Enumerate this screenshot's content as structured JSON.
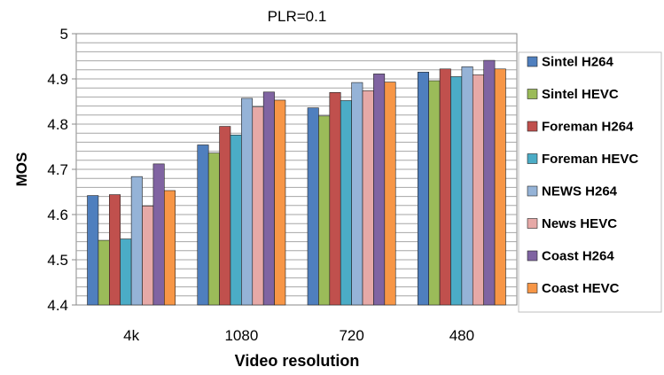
{
  "chart_data": {
    "type": "bar",
    "title": "PLR=0.1",
    "xlabel": "Video resolution",
    "ylabel": "MOS",
    "ylim": [
      4.4,
      5.0
    ],
    "yticks": [
      "4.4",
      "4.5",
      "4.6",
      "4.7",
      "4.8",
      "4.9",
      "5"
    ],
    "grid": true,
    "legend_position": "right",
    "categories": [
      "4k",
      "1080",
      "720",
      "480"
    ],
    "series": [
      {
        "name": "Sintel H264",
        "color": "#4f7fbe",
        "values": [
          4.642,
          4.754,
          4.836,
          4.915
        ]
      },
      {
        "name": "Sintel HEVC",
        "color": "#9bbb59",
        "values": [
          4.543,
          4.736,
          4.818,
          4.896
        ]
      },
      {
        "name": "Foreman H264",
        "color": "#c0504d",
        "values": [
          4.644,
          4.795,
          4.87,
          4.922
        ]
      },
      {
        "name": "Foreman HEVC",
        "color": "#4bacc6",
        "values": [
          4.546,
          4.776,
          4.852,
          4.905
        ]
      },
      {
        "name": "NEWS H264",
        "color": "#95b3d7",
        "values": [
          4.684,
          4.857,
          4.892,
          4.927
        ]
      },
      {
        "name": "News HEVC",
        "color": "#e6a9a7",
        "values": [
          4.619,
          4.838,
          4.874,
          4.909
        ]
      },
      {
        "name": "Coast H264",
        "color": "#8064a2",
        "values": [
          4.712,
          4.871,
          4.911,
          4.941
        ]
      },
      {
        "name": "Coast HEVC",
        "color": "#f79646",
        "values": [
          4.653,
          4.853,
          4.893,
          4.922
        ]
      }
    ]
  }
}
